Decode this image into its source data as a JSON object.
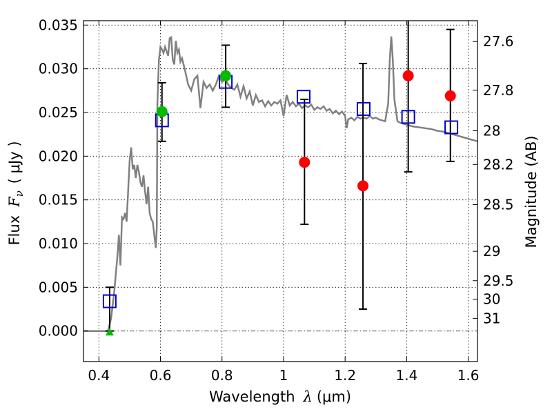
{
  "chart_data": {
    "type": "scatter",
    "xlabel_text": "Wavelength",
    "xlabel_symbol": "λ",
    "xlabel_unit": "(μm)",
    "ylabel_text": "Flux",
    "ylabel_symbol": "F",
    "ylabel_subscript": "ν",
    "ylabel_unit": "( μJy )",
    "y2label": "Magnitude (AB)",
    "xlim": [
      0.35,
      1.63
    ],
    "ylim": [
      -0.0035,
      0.0355
    ],
    "grid": true,
    "x_ticks": [
      {
        "value": 0.4,
        "label": "0.4"
      },
      {
        "value": 0.6,
        "label": "0.6"
      },
      {
        "value": 0.8,
        "label": "0.8"
      },
      {
        "value": 1.0,
        "label": "1"
      },
      {
        "value": 1.2,
        "label": "1.2"
      },
      {
        "value": 1.4,
        "label": "1.4"
      },
      {
        "value": 1.6,
        "label": "1.6"
      }
    ],
    "y_ticks": [
      {
        "value": 0.0,
        "label": "0.000"
      },
      {
        "value": 0.005,
        "label": "0.005"
      },
      {
        "value": 0.01,
        "label": "0.010"
      },
      {
        "value": 0.015,
        "label": "0.015"
      },
      {
        "value": 0.02,
        "label": "0.020"
      },
      {
        "value": 0.025,
        "label": "0.025"
      },
      {
        "value": 0.03,
        "label": "0.030"
      },
      {
        "value": 0.035,
        "label": "0.035"
      }
    ],
    "y2_ticks": [
      {
        "mag": 27.6,
        "label": "27.6"
      },
      {
        "mag": 27.8,
        "label": "27.8"
      },
      {
        "mag": 28.0,
        "label": "28"
      },
      {
        "mag": 28.2,
        "label": "28.2"
      },
      {
        "mag": 28.5,
        "label": "28.5"
      },
      {
        "mag": 29.0,
        "label": "29"
      },
      {
        "mag": 29.5,
        "label": "29.5"
      },
      {
        "mag": 30.0,
        "label": "30"
      },
      {
        "mag": 31.0,
        "label": "31"
      }
    ],
    "colors": {
      "model": "#808080",
      "model_points": "#0000cc",
      "detections": "#ff0000",
      "ground": "#00bb00",
      "errorbars": "#000000"
    },
    "model_spectrum": {
      "x": [
        0.35,
        0.43,
        0.44,
        0.45,
        0.46,
        0.465,
        0.47,
        0.475,
        0.48,
        0.485,
        0.49,
        0.495,
        0.5,
        0.505,
        0.51,
        0.515,
        0.52,
        0.525,
        0.53,
        0.535,
        0.54,
        0.545,
        0.55,
        0.555,
        0.56,
        0.565,
        0.57,
        0.575,
        0.58,
        0.585,
        0.588,
        0.59,
        0.595,
        0.6,
        0.605,
        0.61,
        0.615,
        0.62,
        0.625,
        0.63,
        0.635,
        0.64,
        0.645,
        0.65,
        0.655,
        0.66,
        0.665,
        0.67,
        0.68,
        0.69,
        0.7,
        0.71,
        0.72,
        0.73,
        0.74,
        0.75,
        0.76,
        0.77,
        0.78,
        0.79,
        0.8,
        0.81,
        0.82,
        0.83,
        0.84,
        0.85,
        0.86,
        0.87,
        0.88,
        0.89,
        0.9,
        0.91,
        0.92,
        0.93,
        0.94,
        0.95,
        0.96,
        0.97,
        0.98,
        0.99,
        1.0,
        1.01,
        1.02,
        1.03,
        1.04,
        1.05,
        1.06,
        1.07,
        1.08,
        1.09,
        1.1,
        1.11,
        1.12,
        1.13,
        1.14,
        1.15,
        1.16,
        1.17,
        1.18,
        1.19,
        1.2,
        1.205,
        1.21,
        1.22,
        1.23,
        1.24,
        1.25,
        1.26,
        1.27,
        1.28,
        1.29,
        1.3,
        1.31,
        1.32,
        1.33,
        1.34,
        1.345,
        1.35,
        1.355,
        1.36,
        1.37,
        1.38,
        1.4,
        1.42,
        1.44,
        1.46,
        1.48,
        1.5,
        1.52,
        1.54,
        1.56,
        1.58,
        1.6,
        1.63
      ],
      "y": [
        0.0,
        0.0,
        0.0015,
        0.0045,
        0.0085,
        0.011,
        0.0075,
        0.013,
        0.0128,
        0.0135,
        0.0125,
        0.016,
        0.0195,
        0.021,
        0.0185,
        0.019,
        0.0175,
        0.019,
        0.0182,
        0.017,
        0.0165,
        0.0178,
        0.016,
        0.0145,
        0.0165,
        0.0135,
        0.0128,
        0.0125,
        0.011,
        0.0095,
        0.0118,
        0.026,
        0.031,
        0.0325,
        0.0322,
        0.0318,
        0.0325,
        0.032,
        0.0315,
        0.0335,
        0.0336,
        0.031,
        0.0305,
        0.0332,
        0.0318,
        0.0322,
        0.0308,
        0.0312,
        0.0298,
        0.0282,
        0.0275,
        0.0288,
        0.0292,
        0.0255,
        0.0285,
        0.0278,
        0.0282,
        0.0275,
        0.0282,
        0.0292,
        0.0285,
        0.0288,
        0.0282,
        0.0278,
        0.0276,
        0.0282,
        0.0268,
        0.028,
        0.0266,
        0.0274,
        0.0258,
        0.027,
        0.0262,
        0.0264,
        0.0257,
        0.0263,
        0.0258,
        0.0262,
        0.026,
        0.0264,
        0.0246,
        0.027,
        0.0258,
        0.0262,
        0.0257,
        0.026,
        0.0255,
        0.0258,
        0.0256,
        0.0259,
        0.0253,
        0.0256,
        0.0254,
        0.0257,
        0.0252,
        0.0254,
        0.0249,
        0.0252,
        0.0248,
        0.0251,
        0.0246,
        0.0232,
        0.0242,
        0.0244,
        0.0241,
        0.0245,
        0.0243,
        0.0244,
        0.0243,
        0.0246,
        0.0243,
        0.0244,
        0.0242,
        0.0241,
        0.024,
        0.026,
        0.031,
        0.0337,
        0.031,
        0.0265,
        0.024,
        0.0238,
        0.0236,
        0.0234,
        0.0233,
        0.0232,
        0.0231,
        0.0229,
        0.0228,
        0.0226,
        0.0224,
        0.0222,
        0.022,
        0.0217
      ]
    },
    "model_points": [
      {
        "x": 0.435,
        "y": 0.0034
      },
      {
        "x": 0.605,
        "y": 0.0241
      },
      {
        "x": 0.812,
        "y": 0.0285
      },
      {
        "x": 1.065,
        "y": 0.0268
      },
      {
        "x": 1.26,
        "y": 0.0254
      },
      {
        "x": 1.405,
        "y": 0.0245
      },
      {
        "x": 1.545,
        "y": 0.0233
      }
    ],
    "hst_detections": [
      {
        "x": 1.068,
        "y": 0.0193,
        "ylo": 0.0122,
        "yhi": 0.0265
      },
      {
        "x": 1.258,
        "y": 0.0166,
        "ylo": 0.0025,
        "yhi": 0.0306
      },
      {
        "x": 1.405,
        "y": 0.0292,
        "ylo": 0.0182,
        "yhi": 0.0365
      },
      {
        "x": 1.542,
        "y": 0.0269,
        "ylo": 0.0194,
        "yhi": 0.0345
      }
    ],
    "ground_detections": [
      {
        "x": 0.605,
        "y": 0.0251,
        "ylo": 0.0217,
        "yhi": 0.0284
      },
      {
        "x": 0.812,
        "y": 0.0292,
        "ylo": 0.0256,
        "yhi": 0.0327
      }
    ],
    "ground_upper_limit": {
      "x": 0.435,
      "y": -0.0002,
      "ylo": 0.0,
      "yhi": 0.005
    }
  }
}
